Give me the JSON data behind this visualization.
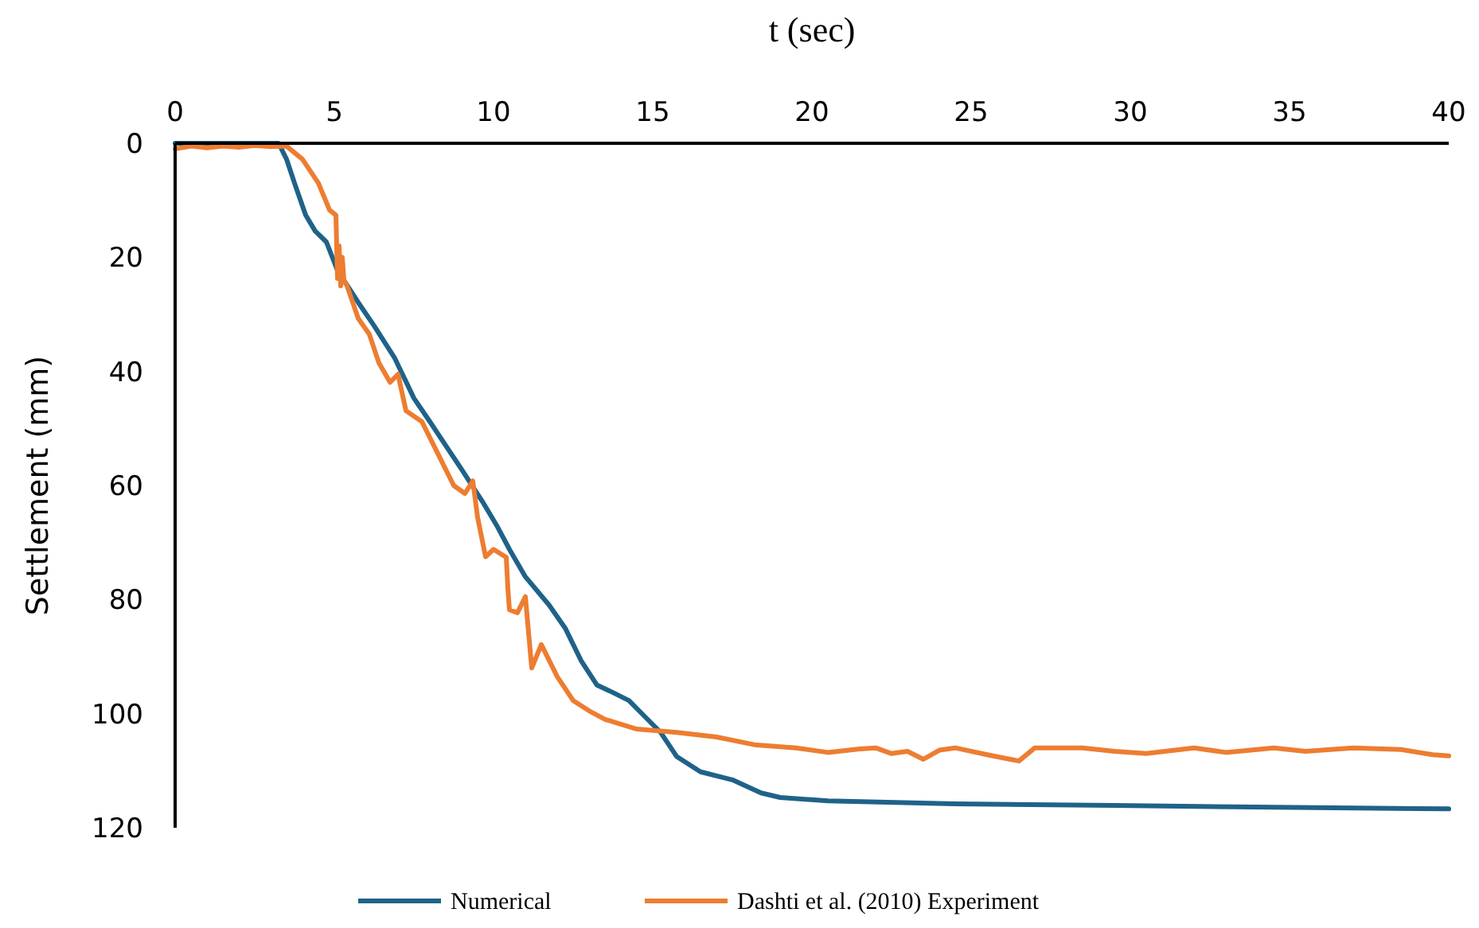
{
  "chart_data": {
    "type": "line",
    "xlabel": "t (sec)",
    "ylabel": "Settlement (mm)",
    "xlim": [
      0,
      40
    ],
    "xticks": [
      0,
      5,
      10,
      15,
      20,
      25,
      30,
      35,
      40
    ],
    "ylim": [
      120,
      0
    ],
    "yticks": [
      0,
      20,
      40,
      60,
      80,
      100,
      120
    ],
    "legend": "bottom",
    "grid": false,
    "line_style": "solid",
    "marker": "none",
    "series": [
      {
        "name": "Numerical",
        "color": "#1f6289",
        "x": [
          0,
          3.25,
          3.5,
          3.75,
          4.1,
          4.4,
          4.75,
          5.1,
          5.75,
          6.25,
          6.9,
          7.5,
          8,
          8.5,
          9,
          9.65,
          10.1,
          10.5,
          11,
          11.75,
          12.25,
          12.75,
          13.25,
          13.75,
          14.25,
          14.75,
          15.25,
          15.75,
          16.5,
          17.5,
          18.4,
          19,
          20.5,
          24.5,
          29.5,
          34.5,
          40
        ],
        "values": [
          0,
          0,
          2.8,
          7,
          12.6,
          15.4,
          17.3,
          22.3,
          27.9,
          32,
          37.7,
          44.7,
          48.8,
          53,
          57.2,
          62.8,
          67,
          71.2,
          76,
          81,
          85,
          90.7,
          95,
          96.3,
          97.7,
          100.5,
          103.3,
          107.5,
          110.2,
          111.6,
          113.9,
          114.7,
          115.3,
          115.8,
          116.1,
          116.4,
          116.7
        ]
      },
      {
        "name": "Dashti et al. (2010) Experiment",
        "color": "#ed7d31",
        "x": [
          0,
          0.5,
          1,
          1.5,
          2,
          2.5,
          3,
          3.5,
          4,
          4.5,
          4.85,
          5.05,
          5.1,
          5.15,
          5.2,
          5.25,
          5.3,
          5.4,
          5.75,
          6.1,
          6.4,
          6.75,
          7,
          7.25,
          7.75,
          8.25,
          8.75,
          9.1,
          9.35,
          9.5,
          9.75,
          10,
          10.4,
          10.45,
          10.5,
          10.75,
          11,
          11.2,
          11.5,
          12,
          12.5,
          13,
          13.5,
          14.5,
          15.75,
          17,
          18.25,
          19.5,
          20.5,
          21.5,
          22,
          22.5,
          23,
          23.5,
          24,
          24.5,
          25.5,
          26.5,
          27,
          28.5,
          29.5,
          30.5,
          32,
          33,
          34.5,
          35.5,
          37,
          38.5,
          39.5,
          40
        ],
        "values": [
          1,
          0.5,
          0.8,
          0.5,
          0.7,
          0.4,
          0.6,
          0.5,
          2.8,
          7,
          11.7,
          12.6,
          23.7,
          18,
          25,
          20,
          24,
          25,
          30.7,
          33.5,
          38.5,
          41.9,
          40.5,
          46.9,
          48.8,
          54.4,
          60,
          61.4,
          59.2,
          65.6,
          72.5,
          71.2,
          72.6,
          78,
          81.8,
          82.3,
          79.5,
          92,
          87.9,
          93.5,
          97.7,
          99.5,
          101,
          102.7,
          103.3,
          104.1,
          105.5,
          106,
          106.8,
          106.2,
          106,
          107,
          106.6,
          108,
          106.4,
          106,
          107.2,
          108.3,
          106,
          106,
          106.6,
          107,
          106,
          106.8,
          106,
          106.6,
          106,
          106.3,
          107.2,
          107.4
        ]
      }
    ]
  }
}
